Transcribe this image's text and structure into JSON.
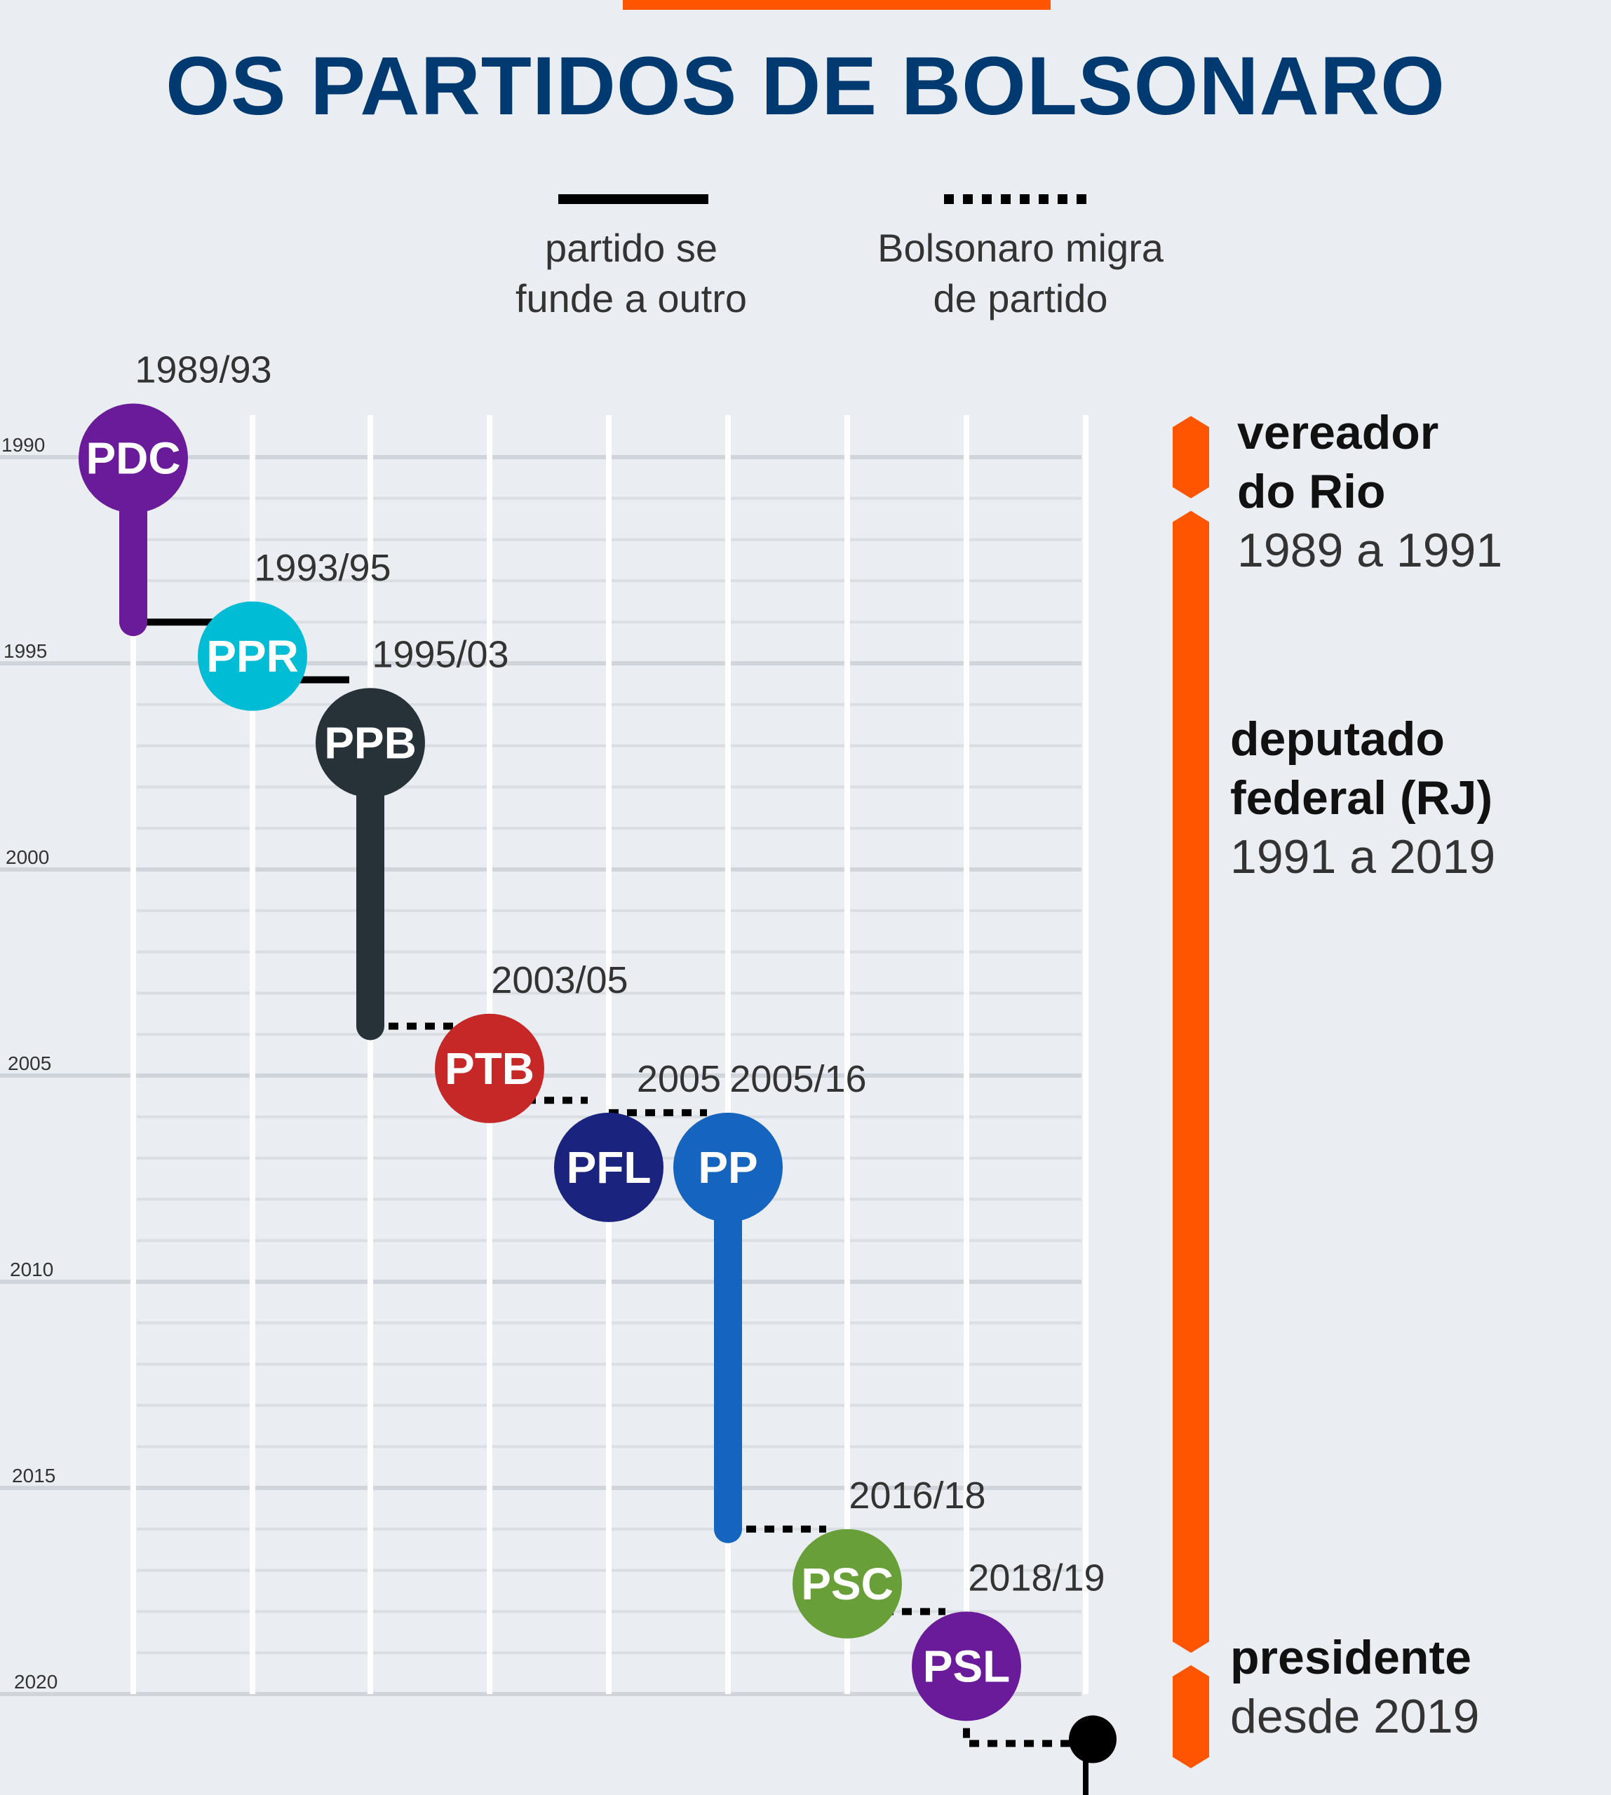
{
  "title": "OS PARTIDOS DE BOLSONARO",
  "legend": {
    "merge_text_line1": "partido se",
    "merge_text_line2": "funde a outro",
    "migrate_text_line1": "Bolsonaro migra",
    "migrate_text_line2": "de partido"
  },
  "chart_data": {
    "type": "timeline",
    "year_axis": {
      "labels": [
        "1990",
        "1995",
        "2000",
        "2005",
        "2010",
        "2015",
        "2020"
      ]
    },
    "parties": [
      {
        "acronym": "PDC",
        "period": "1989/93",
        "start": 1988.7,
        "end": 1994.0,
        "color": "#6a1b9a",
        "col": 0,
        "next": "merge"
      },
      {
        "acronym": "PPR",
        "period": "1993/95",
        "start": 1993.5,
        "end": 1995.4,
        "color": "#00bcd4",
        "col": 1,
        "next": "merge"
      },
      {
        "acronym": "PPB",
        "period": "1995/03",
        "start": 1995.6,
        "end": 2003.8,
        "color": "#263238",
        "col": 2,
        "next": "migrate"
      },
      {
        "acronym": "PTB",
        "period": "2003/05",
        "start": 2003.5,
        "end": 2005.6,
        "color": "#c62828",
        "col": 3,
        "next": "migrate"
      },
      {
        "acronym": "PFL",
        "period": "2005",
        "start": 2005.9,
        "end": 2005.9,
        "color": "#1a237e",
        "col": 4,
        "next": "migrate"
      },
      {
        "acronym": "PP",
        "period": "2005/16",
        "start": 2005.9,
        "end": 2016.0,
        "color": "#1565c0",
        "col": 5,
        "next": "migrate"
      },
      {
        "acronym": "PSC",
        "period": "2016/18",
        "start": 2016.0,
        "end": 2018.0,
        "color": "#689f38",
        "col": 6,
        "next": "migrate"
      },
      {
        "acronym": "PSL",
        "period": "2018/19",
        "start": 2018.0,
        "end": 2019.5,
        "color": "#6a1b9a",
        "col": 7,
        "next": "migrate"
      }
    ]
  },
  "roles": [
    {
      "title_line1": "vereador",
      "title_line2": "do Rio",
      "years": "1989 a 1991"
    },
    {
      "title_line1": "deputado",
      "title_line2": "federal (RJ)",
      "years": "1991 a 2019"
    },
    {
      "title_line1": "presidente",
      "title_line2": "",
      "years": "desde 2019"
    }
  ],
  "colors": {
    "accent": "#ff5500",
    "title": "#003a70",
    "grid": "#d2d8de"
  }
}
